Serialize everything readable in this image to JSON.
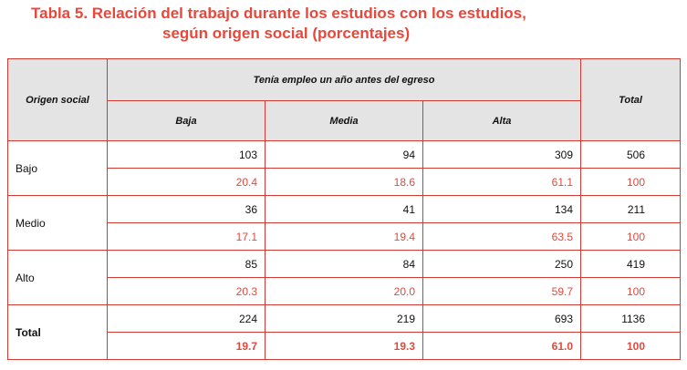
{
  "title": {
    "line1": "Tabla 5. Relación del trabajo durante los estudios con los estudios,",
    "line2": "según origen social (porcentajes)"
  },
  "table": {
    "header_origin": "Origen social",
    "header_group": "Tenía empleo un año antes del egreso",
    "header_total": "Total",
    "sub_headers": [
      "Baja",
      "Media",
      "Alta"
    ],
    "rows": [
      {
        "label": "Bajo",
        "counts": [
          "103",
          "94",
          "309",
          "506"
        ],
        "pcts": [
          "20.4",
          "18.6",
          "61.1",
          "100"
        ]
      },
      {
        "label": "Medio",
        "counts": [
          "36",
          "41",
          "134",
          "211"
        ],
        "pcts": [
          "17.1",
          "19.4",
          "63.5",
          "100"
        ]
      },
      {
        "label": "Alto",
        "counts": [
          "85",
          "84",
          "250",
          "419"
        ],
        "pcts": [
          "20.3",
          "20.0",
          "59.7",
          "100"
        ]
      },
      {
        "label": "Total",
        "counts": [
          "224",
          "219",
          "693",
          "1136"
        ],
        "pcts": [
          "19.7",
          "19.3",
          "61.0",
          "100"
        ]
      }
    ]
  },
  "colors": {
    "accent": "#e8473b",
    "header_bg": "#e4e4e4"
  }
}
